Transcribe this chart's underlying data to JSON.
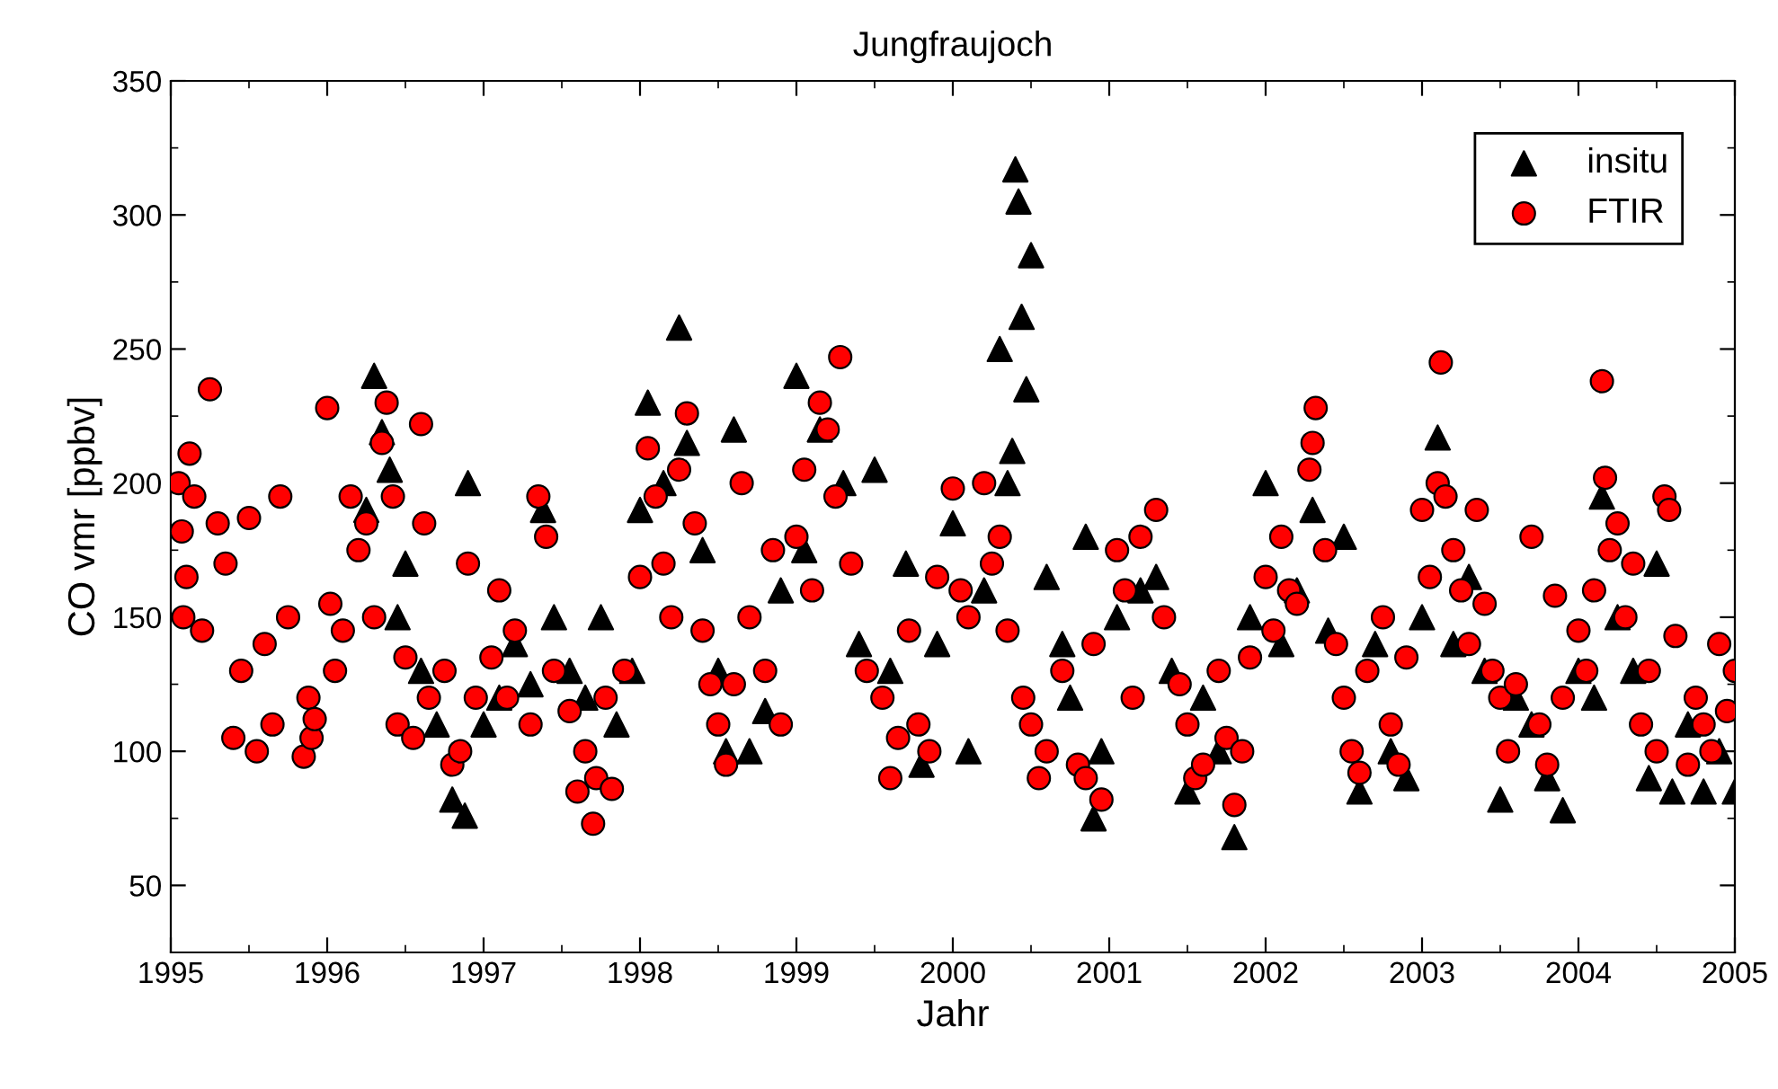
{
  "chart_data": {
    "type": "scatter",
    "title": "Jungfraujoch",
    "xlabel": "Jahr",
    "ylabel": "CO vmr [ppbv]",
    "xlim": [
      1995,
      2005
    ],
    "xticks": [
      1995,
      1996,
      1997,
      1998,
      1999,
      2000,
      2001,
      2002,
      2003,
      2004,
      2005
    ],
    "ylim": [
      25,
      350
    ],
    "yticks": [
      50,
      100,
      150,
      200,
      250,
      300,
      350
    ],
    "grid": false,
    "legend": "top right",
    "series": [
      {
        "name": "insitu",
        "color": "#000000",
        "marker": "triangle",
        "x": [
          1996.25,
          1996.3,
          1996.35,
          1996.4,
          1996.45,
          1996.5,
          1996.6,
          1996.7,
          1996.8,
          1996.88,
          1996.9,
          1997.0,
          1997.1,
          1997.2,
          1997.3,
          1997.38,
          1997.45,
          1997.55,
          1997.65,
          1997.75,
          1997.85,
          1997.95,
          1998.0,
          1998.05,
          1998.15,
          1998.25,
          1998.3,
          1998.4,
          1998.5,
          1998.55,
          1998.6,
          1998.7,
          1998.8,
          1998.9,
          1999.0,
          1999.05,
          1999.15,
          1999.3,
          1999.4,
          1999.5,
          1999.6,
          1999.7,
          1999.8,
          1999.9,
          2000.0,
          2000.1,
          2000.2,
          2000.3,
          2000.35,
          2000.38,
          2000.4,
          2000.42,
          2000.44,
          2000.47,
          2000.5,
          2000.6,
          2000.7,
          2000.75,
          2000.85,
          2000.9,
          2000.95,
          2001.05,
          2001.2,
          2001.3,
          2001.4,
          2001.5,
          2001.6,
          2001.7,
          2001.8,
          2001.9,
          2002.0,
          2002.1,
          2002.2,
          2002.3,
          2002.4,
          2002.5,
          2002.6,
          2002.7,
          2002.8,
          2002.9,
          2003.0,
          2003.1,
          2003.2,
          2003.3,
          2003.4,
          2003.5,
          2003.6,
          2003.7,
          2003.8,
          2003.9,
          2004.0,
          2004.1,
          2004.15,
          2004.25,
          2004.35,
          2004.45,
          2004.5,
          2004.6,
          2004.7,
          2004.8,
          2004.9,
          2005.0
        ],
        "values": [
          190,
          240,
          219,
          205,
          150,
          170,
          130,
          110,
          82,
          76,
          200,
          110,
          120,
          140,
          125,
          190,
          150,
          130,
          120,
          150,
          110,
          130,
          190,
          230,
          200,
          258,
          215,
          175,
          130,
          100,
          220,
          100,
          115,
          160,
          240,
          175,
          220,
          200,
          140,
          205,
          130,
          170,
          95,
          140,
          185,
          100,
          160,
          250,
          200,
          212,
          317,
          305,
          262,
          235,
          285,
          165,
          140,
          120,
          180,
          75,
          100,
          150,
          160,
          165,
          130,
          85,
          120,
          100,
          68,
          150,
          200,
          140,
          160,
          190,
          145,
          180,
          85,
          140,
          100,
          90,
          150,
          217,
          140,
          165,
          130,
          82,
          120,
          110,
          90,
          78,
          130,
          120,
          195,
          150,
          130,
          90,
          170,
          85,
          110,
          85,
          100,
          85
        ]
      },
      {
        "name": "FTIR",
        "color": "#ff0000",
        "marker": "circle",
        "x": [
          1995.05,
          1995.07,
          1995.08,
          1995.1,
          1995.12,
          1995.15,
          1995.2,
          1995.25,
          1995.3,
          1995.35,
          1995.4,
          1995.45,
          1995.5,
          1995.55,
          1995.6,
          1995.65,
          1995.7,
          1995.75,
          1995.85,
          1995.88,
          1995.9,
          1995.92,
          1996.0,
          1996.02,
          1996.05,
          1996.1,
          1996.15,
          1996.2,
          1996.25,
          1996.3,
          1996.35,
          1996.38,
          1996.42,
          1996.45,
          1996.5,
          1996.55,
          1996.6,
          1996.62,
          1996.65,
          1996.75,
          1996.8,
          1996.85,
          1996.9,
          1996.95,
          1997.05,
          1997.1,
          1997.15,
          1997.2,
          1997.3,
          1997.35,
          1997.4,
          1997.45,
          1997.55,
          1997.6,
          1997.65,
          1997.7,
          1997.72,
          1997.78,
          1997.82,
          1997.9,
          1998.0,
          1998.05,
          1998.1,
          1998.15,
          1998.2,
          1998.25,
          1998.3,
          1998.35,
          1998.4,
          1998.45,
          1998.5,
          1998.55,
          1998.6,
          1998.65,
          1998.7,
          1998.8,
          1998.85,
          1998.9,
          1999.0,
          1999.05,
          1999.1,
          1999.15,
          1999.2,
          1999.25,
          1999.28,
          1999.35,
          1999.45,
          1999.55,
          1999.6,
          1999.65,
          1999.72,
          1999.78,
          1999.85,
          1999.9,
          2000.0,
          2000.05,
          2000.1,
          2000.2,
          2000.25,
          2000.3,
          2000.35,
          2000.45,
          2000.5,
          2000.55,
          2000.6,
          2000.7,
          2000.8,
          2000.85,
          2000.9,
          2000.95,
          2001.05,
          2001.1,
          2001.15,
          2001.2,
          2001.3,
          2001.35,
          2001.45,
          2001.5,
          2001.55,
          2001.6,
          2001.7,
          2001.75,
          2001.8,
          2001.85,
          2001.9,
          2002.0,
          2002.05,
          2002.1,
          2002.15,
          2002.2,
          2002.28,
          2002.3,
          2002.32,
          2002.38,
          2002.45,
          2002.5,
          2002.55,
          2002.6,
          2002.65,
          2002.75,
          2002.8,
          2002.85,
          2002.9,
          2003.0,
          2003.05,
          2003.1,
          2003.12,
          2003.15,
          2003.2,
          2003.25,
          2003.3,
          2003.35,
          2003.4,
          2003.45,
          2003.5,
          2003.55,
          2003.6,
          2003.7,
          2003.75,
          2003.8,
          2003.85,
          2003.9,
          2004.0,
          2004.05,
          2004.1,
          2004.15,
          2004.17,
          2004.2,
          2004.25,
          2004.3,
          2004.35,
          2004.4,
          2004.45,
          2004.5,
          2004.55,
          2004.58,
          2004.62,
          2004.7,
          2004.75,
          2004.8,
          2004.85,
          2004.9,
          2004.95,
          2005.0
        ],
        "values": [
          200,
          182,
          150,
          165,
          211,
          195,
          145,
          235,
          185,
          170,
          105,
          130,
          187,
          100,
          140,
          110,
          195,
          150,
          98,
          120,
          105,
          112,
          228,
          155,
          130,
          145,
          195,
          175,
          185,
          150,
          215,
          230,
          195,
          110,
          135,
          105,
          222,
          185,
          120,
          130,
          95,
          100,
          170,
          120,
          135,
          160,
          120,
          145,
          110,
          195,
          180,
          130,
          115,
          85,
          100,
          73,
          90,
          120,
          86,
          130,
          165,
          213,
          195,
          170,
          150,
          205,
          226,
          185,
          145,
          125,
          110,
          95,
          125,
          200,
          150,
          130,
          175,
          110,
          180,
          205,
          160,
          230,
          220,
          195,
          247,
          170,
          130,
          120,
          90,
          105,
          145,
          110,
          100,
          165,
          198,
          160,
          150,
          200,
          170,
          180,
          145,
          120,
          110,
          90,
          100,
          130,
          95,
          90,
          140,
          82,
          175,
          160,
          120,
          180,
          190,
          150,
          125,
          110,
          90,
          95,
          130,
          105,
          80,
          100,
          135,
          165,
          145,
          180,
          160,
          155,
          205,
          215,
          228,
          175,
          140,
          120,
          100,
          92,
          130,
          150,
          110,
          95,
          135,
          190,
          165,
          200,
          245,
          195,
          175,
          160,
          140,
          190,
          155,
          130,
          120,
          100,
          125,
          180,
          110,
          95,
          158,
          120,
          145,
          130,
          160,
          238,
          202,
          175,
          185,
          150,
          170,
          110,
          130,
          100,
          195,
          190,
          143,
          95,
          120,
          110,
          100,
          140,
          115,
          130
        ]
      }
    ]
  }
}
